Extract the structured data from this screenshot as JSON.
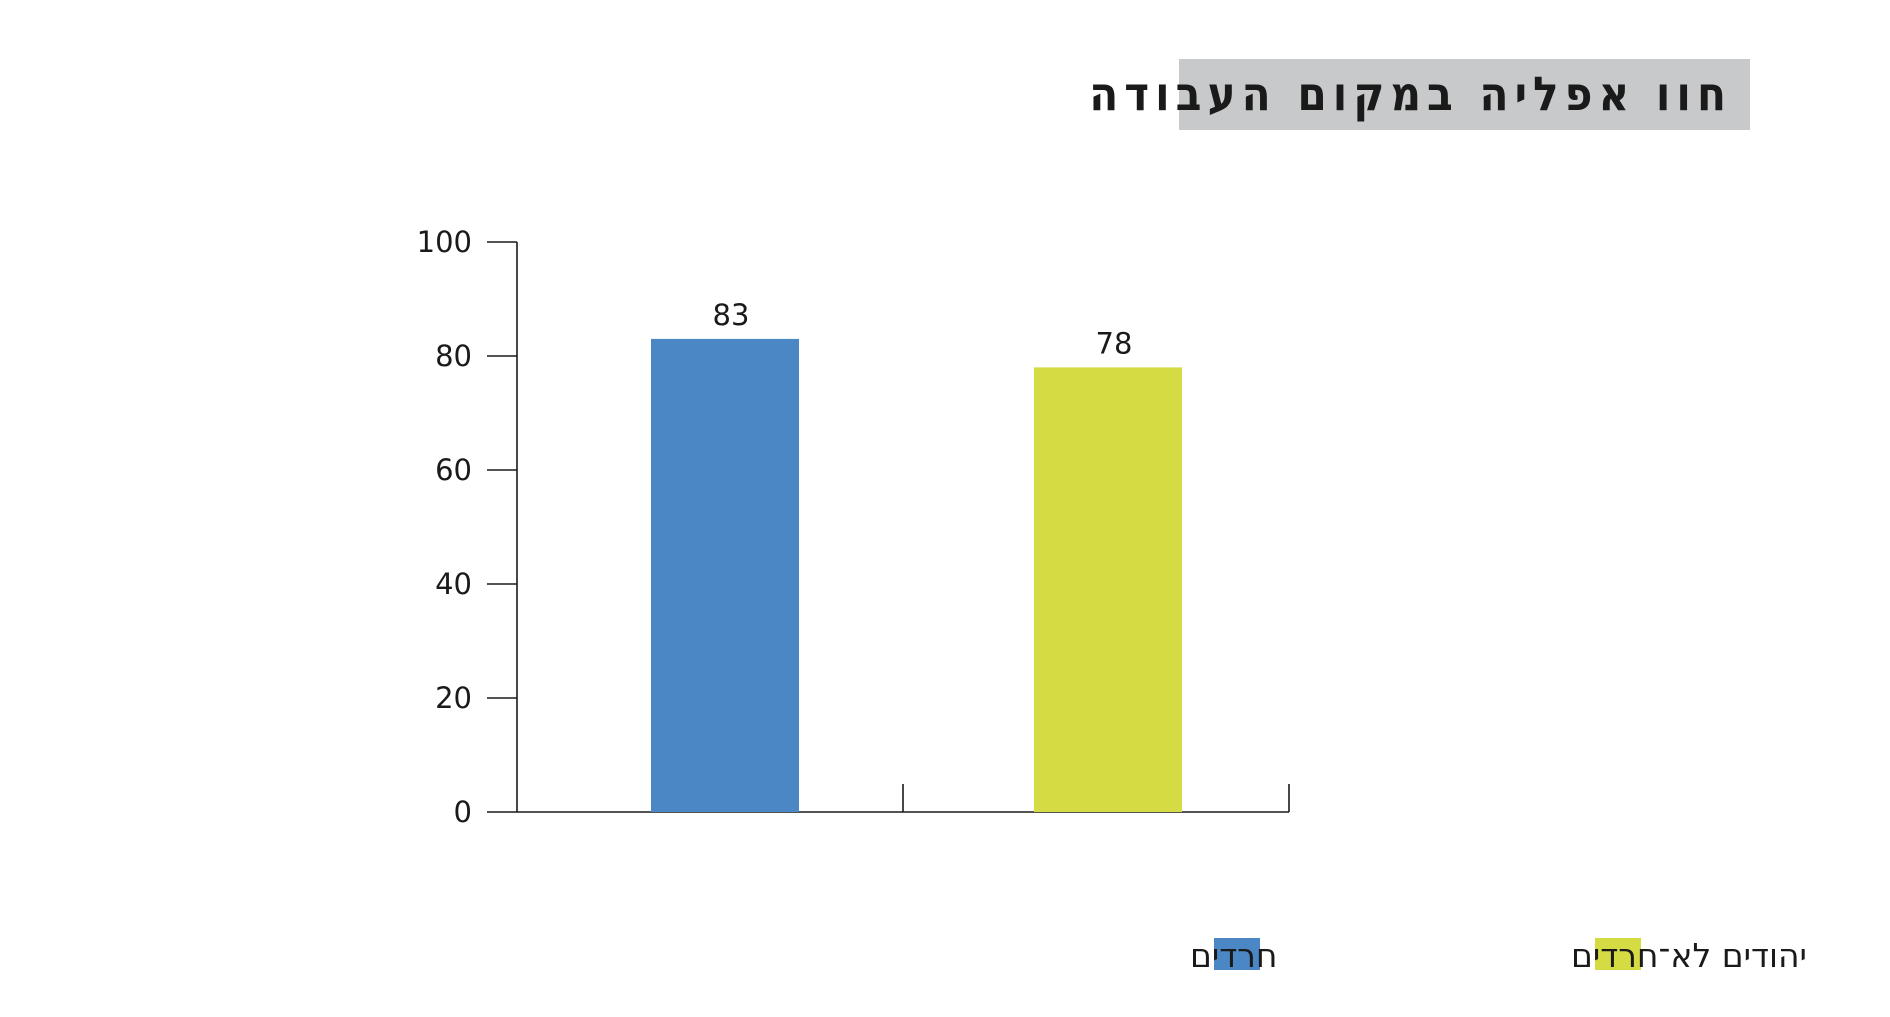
{
  "title": "חוו אפליה במקום העבודה",
  "chart_data": {
    "type": "bar",
    "title": "חוו אפליה במקום העבודה",
    "xlabel": "",
    "ylabel": "",
    "ylim": [
      0,
      100
    ],
    "yticks": [
      "0",
      "20",
      "40",
      "60",
      "80",
      "100"
    ],
    "grid": false,
    "legend_placement": "bottom-right",
    "series": [
      {
        "name": "חרדים",
        "value": 83,
        "color": "#4b87c5"
      },
      {
        "name": "יהודים לא־חרדים",
        "value": 78,
        "color": "#d5db43"
      }
    ]
  }
}
